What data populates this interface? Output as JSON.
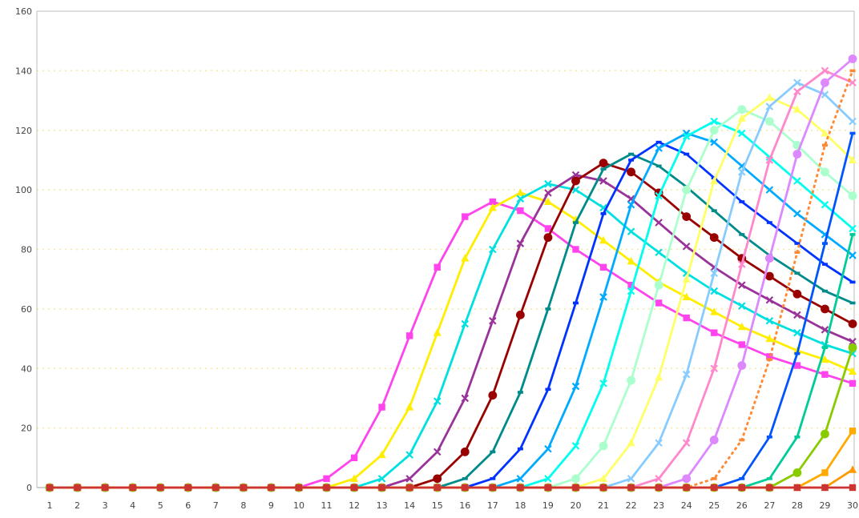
{
  "chart_data": {
    "type": "line",
    "title": "",
    "xlabel": "",
    "ylabel": "",
    "ylim": [
      0,
      160
    ],
    "y_ticks": [
      "0",
      "20",
      "40",
      "60",
      "80",
      "100",
      "120",
      "140",
      "160"
    ],
    "x": [
      1,
      2,
      3,
      4,
      5,
      6,
      7,
      8,
      9,
      10,
      11,
      12,
      13,
      14,
      15,
      16,
      17,
      18,
      19,
      20,
      21,
      22,
      23,
      24,
      25,
      26,
      27,
      28,
      29,
      30
    ],
    "x_tick_labels": [
      "1",
      "2",
      "3",
      "4",
      "5",
      "6",
      "7",
      "8",
      "9",
      "10",
      "11",
      "12",
      "13",
      "14",
      "15",
      "16",
      "17",
      "18",
      "19",
      "20",
      "21",
      "22",
      "23",
      "24",
      "25",
      "26",
      "27",
      "28",
      "29",
      "30"
    ],
    "grid": "horizontal dotted",
    "legend": "none",
    "series": [
      {
        "color": "#ff44ee",
        "marker": "square",
        "values": [
          0,
          0,
          0,
          0,
          0,
          0,
          0,
          0,
          0,
          0,
          3,
          10,
          27,
          51,
          74,
          91,
          96,
          93,
          87,
          80,
          74,
          68,
          62,
          57,
          52,
          48,
          44,
          41,
          38,
          35
        ]
      },
      {
        "color": "#ffee00",
        "marker": "triangle",
        "values": [
          0,
          0,
          0,
          0,
          0,
          0,
          0,
          0,
          0,
          0,
          0,
          3,
          11,
          27,
          52,
          77,
          94,
          99,
          96,
          90,
          83,
          76,
          69,
          64,
          59,
          54,
          50,
          46,
          43,
          39
        ]
      },
      {
        "color": "#00e0e0",
        "marker": "x",
        "values": [
          0,
          0,
          0,
          0,
          0,
          0,
          0,
          0,
          0,
          0,
          0,
          0,
          3,
          11,
          29,
          55,
          80,
          97,
          102,
          100,
          94,
          86,
          79,
          72,
          66,
          61,
          56,
          52,
          48,
          45
        ]
      },
      {
        "color": "#993399",
        "marker": "x",
        "values": [
          0,
          0,
          0,
          0,
          0,
          0,
          0,
          0,
          0,
          0,
          0,
          0,
          0,
          3,
          12,
          30,
          56,
          82,
          99,
          105,
          103,
          97,
          89,
          81,
          74,
          68,
          63,
          58,
          53,
          49
        ]
      },
      {
        "color": "#990000",
        "marker": "circle",
        "values": [
          0,
          0,
          0,
          0,
          0,
          0,
          0,
          0,
          0,
          0,
          0,
          0,
          0,
          0,
          3,
          12,
          31,
          58,
          84,
          103,
          109,
          106,
          99,
          91,
          84,
          77,
          71,
          65,
          60,
          55
        ]
      },
      {
        "color": "#008b8b",
        "marker": "dash",
        "values": [
          0,
          0,
          0,
          0,
          0,
          0,
          0,
          0,
          0,
          0,
          0,
          0,
          0,
          0,
          0,
          3,
          12,
          32,
          60,
          89,
          107,
          112,
          108,
          101,
          93,
          85,
          78,
          72,
          66,
          62
        ]
      },
      {
        "color": "#0033ff",
        "marker": "dash",
        "values": [
          0,
          0,
          0,
          0,
          0,
          0,
          0,
          0,
          0,
          0,
          0,
          0,
          0,
          0,
          0,
          0,
          3,
          13,
          33,
          62,
          92,
          110,
          116,
          112,
          104,
          96,
          89,
          82,
          75,
          69
        ]
      },
      {
        "color": "#00aaff",
        "marker": "x",
        "values": [
          0,
          0,
          0,
          0,
          0,
          0,
          0,
          0,
          0,
          0,
          0,
          0,
          0,
          0,
          0,
          0,
          0,
          3,
          13,
          34,
          64,
          95,
          114,
          119,
          116,
          108,
          100,
          92,
          85,
          78
        ]
      },
      {
        "color": "#00ffee",
        "marker": "x",
        "values": [
          0,
          0,
          0,
          0,
          0,
          0,
          0,
          0,
          0,
          0,
          0,
          0,
          0,
          0,
          0,
          0,
          0,
          0,
          3,
          14,
          35,
          66,
          98,
          118,
          123,
          119,
          111,
          103,
          95,
          87
        ]
      },
      {
        "color": "#aaffcc",
        "marker": "circle",
        "values": [
          0,
          0,
          0,
          0,
          0,
          0,
          0,
          0,
          0,
          0,
          0,
          0,
          0,
          0,
          0,
          0,
          0,
          0,
          0,
          3,
          14,
          36,
          68,
          100,
          120,
          127,
          123,
          115,
          106,
          98
        ]
      },
      {
        "color": "#ffff66",
        "marker": "triangle",
        "values": [
          0,
          0,
          0,
          0,
          0,
          0,
          0,
          0,
          0,
          0,
          0,
          0,
          0,
          0,
          0,
          0,
          0,
          0,
          0,
          0,
          3,
          15,
          37,
          70,
          103,
          124,
          131,
          127,
          119,
          110
        ]
      },
      {
        "color": "#88ccff",
        "marker": "x",
        "values": [
          0,
          0,
          0,
          0,
          0,
          0,
          0,
          0,
          0,
          0,
          0,
          0,
          0,
          0,
          0,
          0,
          0,
          0,
          0,
          0,
          0,
          3,
          15,
          38,
          72,
          106,
          128,
          136,
          132,
          123
        ]
      },
      {
        "color": "#ff88cc",
        "marker": "x",
        "values": [
          0,
          0,
          0,
          0,
          0,
          0,
          0,
          0,
          0,
          0,
          0,
          0,
          0,
          0,
          0,
          0,
          0,
          0,
          0,
          0,
          0,
          0,
          3,
          15,
          40,
          75,
          110,
          133,
          140,
          136
        ]
      },
      {
        "color": "#dd88ff",
        "marker": "circle",
        "values": [
          0,
          0,
          0,
          0,
          0,
          0,
          0,
          0,
          0,
          0,
          0,
          0,
          0,
          0,
          0,
          0,
          0,
          0,
          0,
          0,
          0,
          0,
          0,
          3,
          16,
          41,
          77,
          112,
          136,
          144
        ]
      },
      {
        "color": "#ff8833",
        "marker": "dash",
        "dashed": true,
        "values": [
          0,
          0,
          0,
          0,
          0,
          0,
          0,
          0,
          0,
          0,
          0,
          0,
          0,
          0,
          0,
          0,
          0,
          0,
          0,
          0,
          0,
          0,
          0,
          0,
          3,
          16,
          43,
          79,
          115,
          140
        ]
      },
      {
        "color": "#0055ff",
        "marker": "dash",
        "values": [
          0,
          0,
          0,
          0,
          0,
          0,
          0,
          0,
          0,
          0,
          0,
          0,
          0,
          0,
          0,
          0,
          0,
          0,
          0,
          0,
          0,
          0,
          0,
          0,
          0,
          3,
          17,
          45,
          82,
          119
        ]
      },
      {
        "color": "#00cc99",
        "marker": "dash",
        "values": [
          0,
          0,
          0,
          0,
          0,
          0,
          0,
          0,
          0,
          0,
          0,
          0,
          0,
          0,
          0,
          0,
          0,
          0,
          0,
          0,
          0,
          0,
          0,
          0,
          0,
          0,
          3,
          17,
          47,
          85
        ]
      },
      {
        "color": "#88cc00",
        "marker": "circle",
        "values": [
          0,
          0,
          0,
          0,
          0,
          0,
          0,
          0,
          0,
          0,
          0,
          0,
          0,
          0,
          0,
          0,
          0,
          0,
          0,
          0,
          0,
          0,
          0,
          0,
          0,
          0,
          0,
          5,
          18,
          47
        ]
      },
      {
        "color": "#ffaa00",
        "marker": "square",
        "values": [
          0,
          0,
          0,
          0,
          0,
          0,
          0,
          0,
          0,
          0,
          0,
          0,
          0,
          0,
          0,
          0,
          0,
          0,
          0,
          0,
          0,
          0,
          0,
          0,
          0,
          0,
          0,
          0,
          5,
          19
        ]
      },
      {
        "color": "#ff9900",
        "marker": "triangle",
        "values": [
          0,
          0,
          0,
          0,
          0,
          0,
          0,
          0,
          0,
          0,
          0,
          0,
          0,
          0,
          0,
          0,
          0,
          0,
          0,
          0,
          0,
          0,
          0,
          0,
          0,
          0,
          0,
          0,
          0,
          6
        ]
      },
      {
        "color": "#cc3333",
        "marker": "square",
        "values": [
          0,
          0,
          0,
          0,
          0,
          0,
          0,
          0,
          0,
          0,
          0,
          0,
          0,
          0,
          0,
          0,
          0,
          0,
          0,
          0,
          0,
          0,
          0,
          0,
          0,
          0,
          0,
          0,
          0,
          0
        ]
      }
    ]
  }
}
